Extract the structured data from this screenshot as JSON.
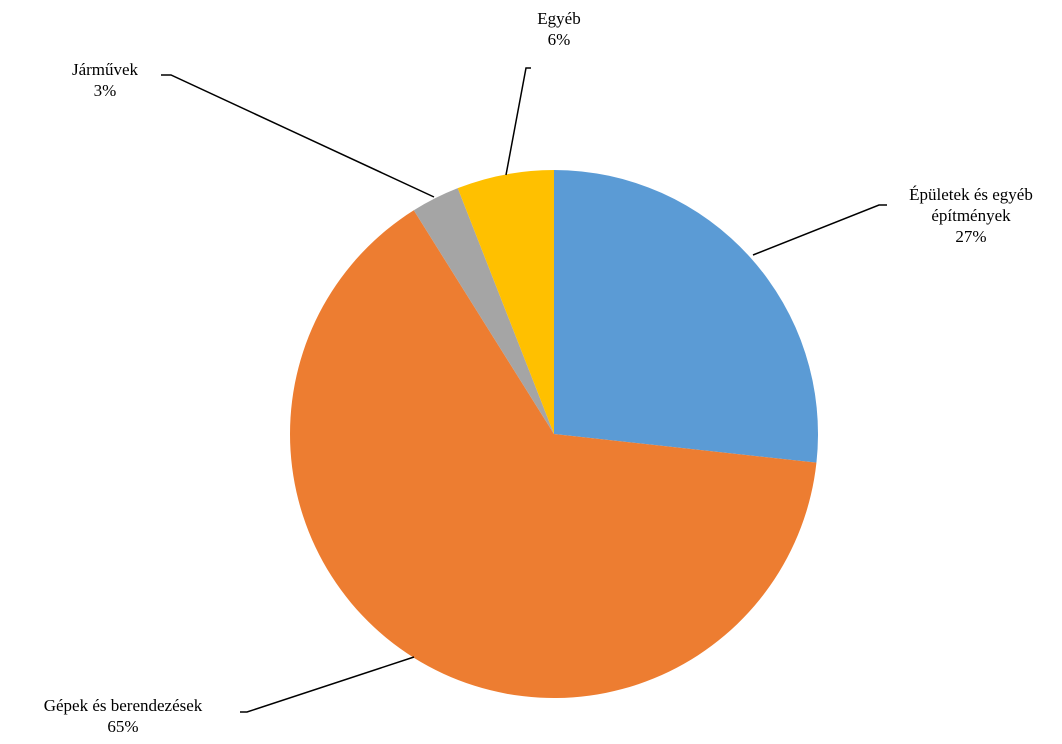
{
  "chart_data": {
    "type": "pie",
    "start_angle_deg": 0,
    "direction": "clockwise",
    "slices": [
      {
        "label": "Épületek és egyéb építmények",
        "label_lines": [
          "Épületek és egyéb",
          "építmények"
        ],
        "value": 27,
        "value_label": "27%",
        "color": "#5B9BD5"
      },
      {
        "label": "Gépek és berendezések",
        "label_lines": [
          "Gépek és berendezések"
        ],
        "value": 65,
        "value_label": "65%",
        "color": "#ED7D31"
      },
      {
        "label": "Járművek",
        "label_lines": [
          "Járművek"
        ],
        "value": 3,
        "value_label": "3%",
        "color": "#A5A5A5"
      },
      {
        "label": "Egyéb",
        "label_lines": [
          "Egyéb"
        ],
        "value": 6,
        "value_label": "6%",
        "color": "#FFC000"
      }
    ]
  }
}
